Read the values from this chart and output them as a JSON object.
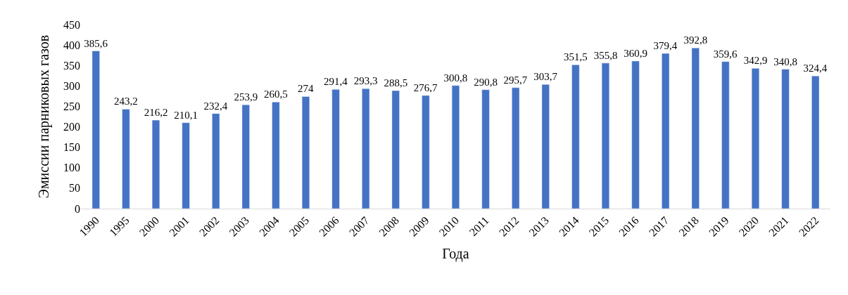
{
  "chart_data": {
    "type": "bar",
    "xlabel": "Года",
    "ylabel": "Эмиссии парниковых газов",
    "categories": [
      "1990",
      "1995",
      "2000",
      "2001",
      "2002",
      "2003",
      "2004",
      "2005",
      "2006",
      "2007",
      "2008",
      "2009",
      "2010",
      "2011",
      "2012",
      "2013",
      "2014",
      "2015",
      "2016",
      "2017",
      "2018",
      "2019",
      "2020",
      "2021",
      "2022"
    ],
    "values": [
      385.6,
      243.2,
      216.2,
      210.1,
      232.4,
      253.9,
      260.5,
      274,
      291.4,
      293.3,
      288.5,
      276.7,
      300.8,
      290.8,
      295.7,
      303.7,
      351.5,
      355.8,
      360.9,
      379.4,
      392.8,
      359.6,
      342.9,
      340.8,
      324.4
    ],
    "value_labels": [
      "385,6",
      "243,2",
      "216,2",
      "210,1",
      "232,4",
      "253,9",
      "260,5",
      "274",
      "291,4",
      "293,3",
      "288,5",
      "276,7",
      "300,8",
      "290,8",
      "295,7",
      "303,7",
      "351,5",
      "355,8",
      "360,9",
      "379,4",
      "392,8",
      "359,6",
      "342,9",
      "340,8",
      "324,4"
    ],
    "color": "#4472c4",
    "ylim": [
      0,
      450
    ],
    "yticks": [
      0,
      50,
      100,
      150,
      200,
      250,
      300,
      350,
      400,
      450
    ],
    "legend": false
  }
}
